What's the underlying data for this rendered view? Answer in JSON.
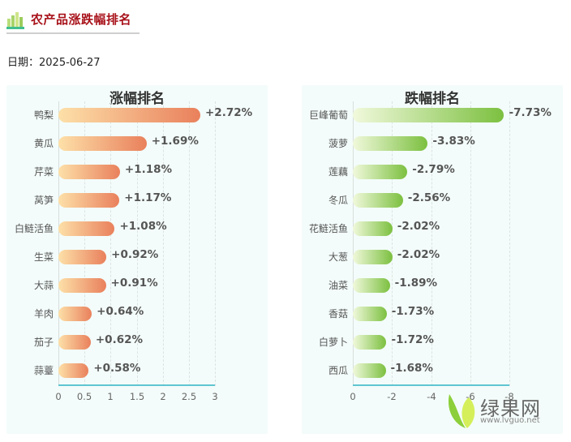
{
  "header": {
    "title": "农产品涨跌幅排名",
    "icon": "bar-chart-icon"
  },
  "date_label": "日期：2025-06-27",
  "brand": {
    "name": "绿果网",
    "url": "www.lvguo.net",
    "icon": "leaf-logo-icon"
  },
  "colors": {
    "title": "#a8131b",
    "rise_start": "#fde0a8",
    "rise_end": "#e9805c",
    "fall_start": "#f1f9dc",
    "fall_end": "#7cc040",
    "axis": "#5fc5d2",
    "panel_bg": "#f3fcfa"
  },
  "chart_data": [
    {
      "type": "bar",
      "orientation": "horizontal",
      "title": "涨幅排名",
      "categories": [
        "鸭梨",
        "黄瓜",
        "芹菜",
        "莴笋",
        "白鲢活鱼",
        "生菜",
        "大蒜",
        "羊肉",
        "茄子",
        "蒜薹"
      ],
      "values": [
        2.72,
        1.69,
        1.18,
        1.17,
        1.08,
        0.92,
        0.91,
        0.64,
        0.62,
        0.58
      ],
      "labels": [
        "+2.72%",
        "+1.69%",
        "+1.18%",
        "+1.17%",
        "+1.08%",
        "+0.92%",
        "+0.91%",
        "+0.64%",
        "+0.62%",
        "+0.58%"
      ],
      "xlabel": "",
      "ylabel": "",
      "xlim": [
        0,
        3
      ],
      "xticks": [
        "0",
        "0.5",
        "1",
        "1.5",
        "2",
        "2.5",
        "3"
      ],
      "grid": true,
      "legend": "none"
    },
    {
      "type": "bar",
      "orientation": "horizontal",
      "title": "跌幅排名",
      "categories": [
        "巨峰葡萄",
        "菠萝",
        "莲藕",
        "冬瓜",
        "花鲢活鱼",
        "大葱",
        "油菜",
        "香菇",
        "白萝卜",
        "西瓜"
      ],
      "values": [
        -7.73,
        -3.83,
        -2.79,
        -2.56,
        -2.02,
        -2.02,
        -1.89,
        -1.73,
        -1.72,
        -1.68
      ],
      "labels": [
        "-7.73%",
        "-3.83%",
        "-2.79%",
        "-2.56%",
        "-2.02%",
        "-2.02%",
        "-1.89%",
        "-1.73%",
        "-1.72%",
        "-1.68%"
      ],
      "xlabel": "",
      "ylabel": "",
      "xlim": [
        0,
        -8
      ],
      "xticks": [
        "0",
        "-2",
        "-4",
        "-6",
        "-8"
      ],
      "grid": true,
      "legend": "none"
    }
  ]
}
